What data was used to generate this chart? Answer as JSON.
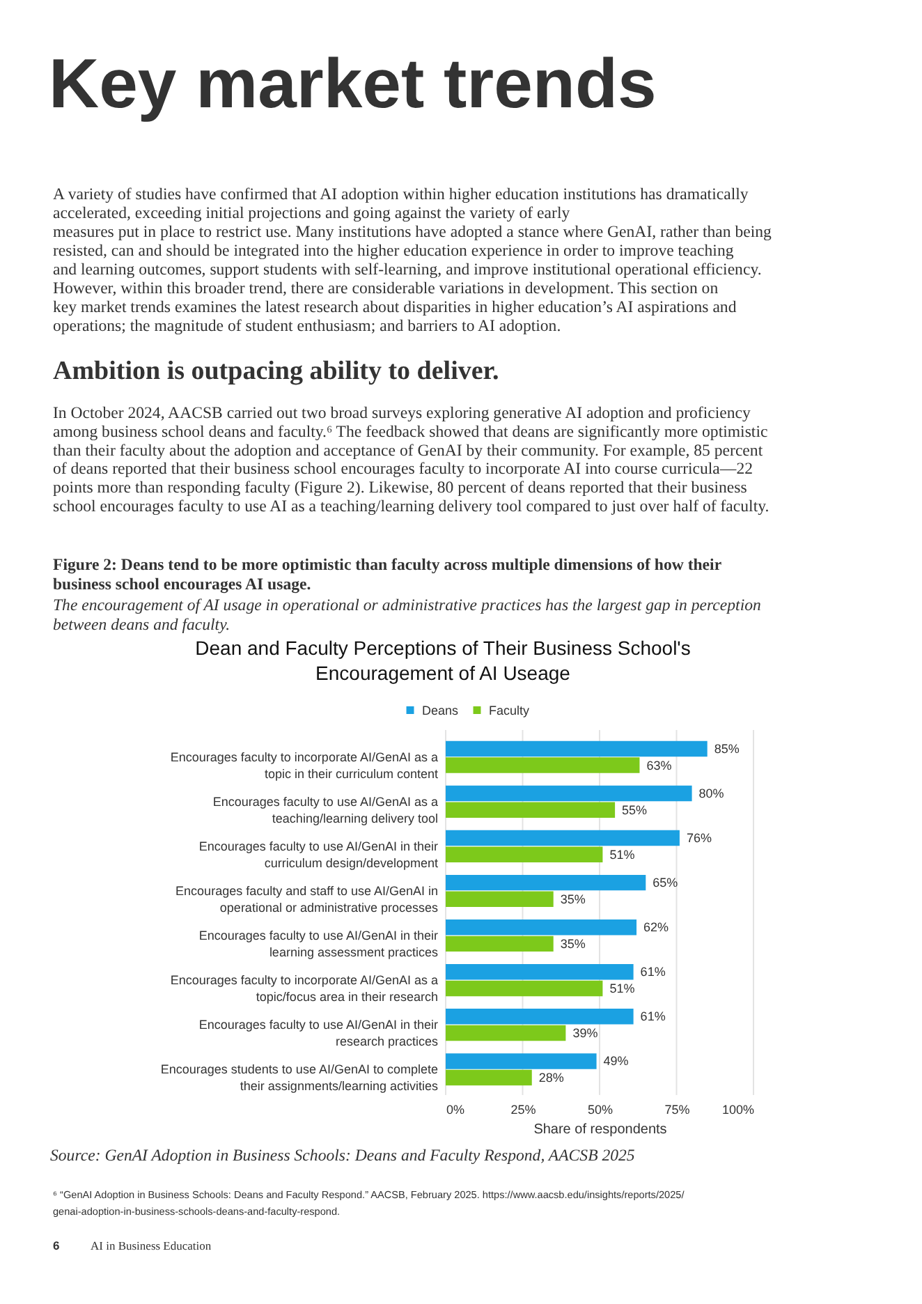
{
  "chart_data": {
    "type": "bar",
    "orientation": "horizontal",
    "title": "Dean and Faculty Perceptions of Their Business School's\nEncouragement of AI Useage",
    "xlabel": "Share of respondents",
    "categories": [
      "Encourages faculty to incorporate AI/GenAI as a\ntopic in their curriculum content",
      "Encourages faculty to use AI/GenAI as a\nteaching/learning delivery tool",
      "Encourages faculty to use AI/GenAI in their\ncurriculum design/development",
      "Encourages faculty and staff to use AI/GenAI in\noperational or administrative processes",
      "Encourages faculty to use AI/GenAI in their\nlearning assessment practices",
      "Encourages faculty to incorporate AI/GenAI as a\ntopic/focus area in their research",
      "Encourages faculty to use AI/GenAI in their\nresearch practices",
      "Encourages students to use AI/GenAI to complete\ntheir assignments/learning activities"
    ],
    "series": [
      {
        "name": "Deans",
        "color": "#1ba1e2",
        "values": [
          85,
          80,
          76,
          65,
          62,
          61,
          61,
          49
        ],
        "value_labels": [
          "85%",
          "80%",
          "76%",
          "65%",
          "62%",
          "61%",
          "61%",
          "49%"
        ]
      },
      {
        "name": "Faculty",
        "color": "#7dc91b",
        "values": [
          63,
          55,
          51,
          35,
          35,
          51,
          39,
          28
        ],
        "value_labels": [
          "63%",
          "55%",
          "51%",
          "35%",
          "35%",
          "51%",
          "39%",
          "28%"
        ]
      }
    ],
    "xlim": [
      0,
      100
    ],
    "xticks": [
      {
        "value": 0,
        "label": "0%"
      },
      {
        "value": 25,
        "label": "25%"
      },
      {
        "value": 50,
        "label": "50%"
      },
      {
        "value": 75,
        "label": "75%"
      },
      {
        "value": 100,
        "label": "100%"
      }
    ],
    "grid": "x",
    "legend": "top",
    "annotations": [
      "Key market trends",
      "A variety of studies have confirmed that AI adoption within higher education institutions has dramatically",
      "accelerated, exceeding initial projections and going against the variety of early",
      "measures put in place to restrict use. Many institutions have adopted a stance where GenAI, rather than being",
      "resisted, can and should be integrated into the higher education experience in order to improve teaching",
      "and learning outcomes, support students with self-learning, and improve institutional operational efficiency.",
      "However, within this broader trend, there are considerable variations in development. This section on",
      "key market trends examines the latest research about disparities in higher education’s AI aspirations and",
      "operations; the magnitude of student enthusiasm; and barriers to AI adoption.",
      "Ambition is outpacing ability to deliver.",
      "In October 2024, AACSB carried out two broad surveys exploring generative AI adoption and proficiency",
      "among business school deans and faculty.⁶ The feedback showed that deans are significantly more optimistic",
      "than their faculty about the adoption and acceptance of GenAI by their community. For example, 85 percent",
      "of deans reported that their business school encourages faculty to incorporate AI into course curricula—22",
      "points more than responding faculty (Figure 2). Likewise, 80 percent of deans reported that their business",
      "school encourages faculty to use AI as a teaching/learning delivery tool compared to just over half of faculty.",
      "Figure 2: Deans tend to be more optimistic than faculty across multiple dimensions of how their",
      "business school encourages AI usage.",
      "The encouragement of AI usage in operational or administrative practices has the largest gap in perception",
      "between deans and faculty.",
      "Source: GenAI Adoption in Business Schools: Deans and Faculty Respond, AACSB 2025",
      "⁶ “GenAI Adoption in Business Schools: Deans and Faculty Respond.” AACSB, February 2025. https://www.aacsb.edu/insights/reports/2025/",
      "genai-adoption-in-business-schools-deans-and-faculty-respond.",
      "6",
      "AI in Business Education"
    ]
  }
}
